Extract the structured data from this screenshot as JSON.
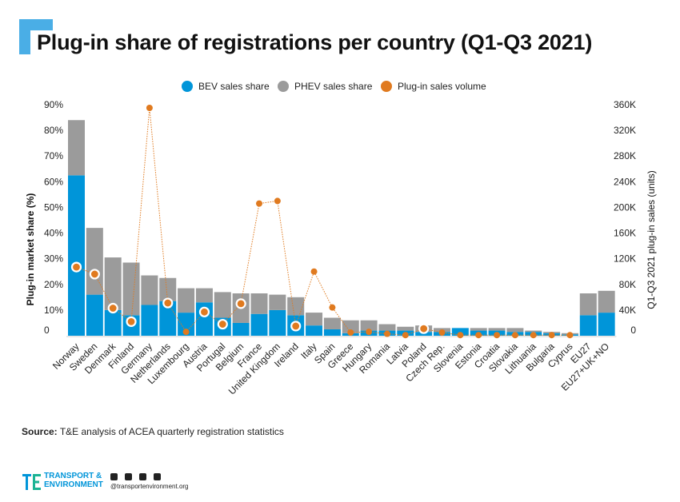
{
  "header": {
    "title": "Plug-in share of registrations per country (Q1-Q3 2021)"
  },
  "colors": {
    "bev": "#0095d9",
    "phev": "#9b9b9b",
    "volume": "#e07a1f",
    "bracket": "#4aaee6"
  },
  "chart_data": {
    "type": "bar",
    "stacked": true,
    "categories": [
      "Norway",
      "Sweden",
      "Denmark",
      "Finland",
      "Germany",
      "Netherlands",
      "Luxembourg",
      "Austria",
      "Portugal",
      "Belgium",
      "France",
      "United Kingdom",
      "Ireland",
      "Italy",
      "Spain",
      "Greece",
      "Hungary",
      "Romania",
      "Latvia",
      "Poland",
      "Czech Rep.",
      "Slovenia",
      "Estonia",
      "Croatia",
      "Slovakia",
      "Lithuania",
      "Bulgaria",
      "Cyprus",
      "EU27",
      "EU27+UK+NO"
    ],
    "series": [
      {
        "name": "BEV sales share",
        "axis": "left",
        "kind": "bar",
        "values": [
          62.5,
          16,
          10,
          8,
          12,
          13.5,
          9,
          13,
          7,
          5,
          8.5,
          10,
          8,
          4,
          2.5,
          1,
          2,
          2,
          2,
          1.5,
          1.5,
          3,
          2,
          2,
          1.5,
          1.5,
          1,
          0.5,
          8,
          9
        ]
      },
      {
        "name": "PHEV sales share",
        "axis": "left",
        "kind": "bar",
        "values": [
          21.5,
          26,
          20.5,
          20.5,
          11.5,
          9,
          9.5,
          5.5,
          10,
          11.5,
          8,
          6,
          7,
          5,
          4.5,
          5,
          4,
          2.5,
          1.5,
          2.5,
          1.5,
          0,
          1,
          1,
          1.5,
          0.5,
          0.5,
          0.5,
          8.5,
          8.5
        ]
      },
      {
        "name": "Plug-in sales volume",
        "axis": "right",
        "kind": "line-dots",
        "values": [
          107000,
          96000,
          43000,
          22000,
          355000,
          51000,
          6000,
          37000,
          18000,
          50000,
          206000,
          210000,
          15000,
          100000,
          44000,
          5000,
          6000,
          3000,
          1000,
          11000,
          5000,
          1000,
          1000,
          1000,
          1000,
          1000,
          1000,
          1000,
          null,
          null
        ]
      }
    ],
    "y_left": {
      "label": "Plug-in market share (%)",
      "ticks": [
        "90%",
        "80%",
        "70%",
        "60%",
        "50%",
        "40%",
        "30%",
        "20%",
        "10%",
        "0"
      ],
      "range": [
        0,
        90
      ]
    },
    "y_right": {
      "label": "Q1-Q3 2021 plug-in sales (units)",
      "ticks": [
        "360K",
        "320K",
        "280K",
        "240K",
        "200K",
        "160K",
        "120K",
        "80K",
        "40K",
        "0"
      ],
      "range": [
        0,
        360000
      ]
    },
    "legend_placement": "top-center",
    "grid": false
  },
  "source": {
    "label": "Source:",
    "text": "T&E analysis of ACEA quarterly registration statistics"
  },
  "footer": {
    "logo_line1": "TRANSPORT &",
    "logo_line2": "ENVIRONMENT",
    "website": "@transportenvironment.org",
    "social_icons": [
      "twitter-icon",
      "facebook-icon",
      "instagram-icon",
      "linkedin-icon"
    ]
  }
}
